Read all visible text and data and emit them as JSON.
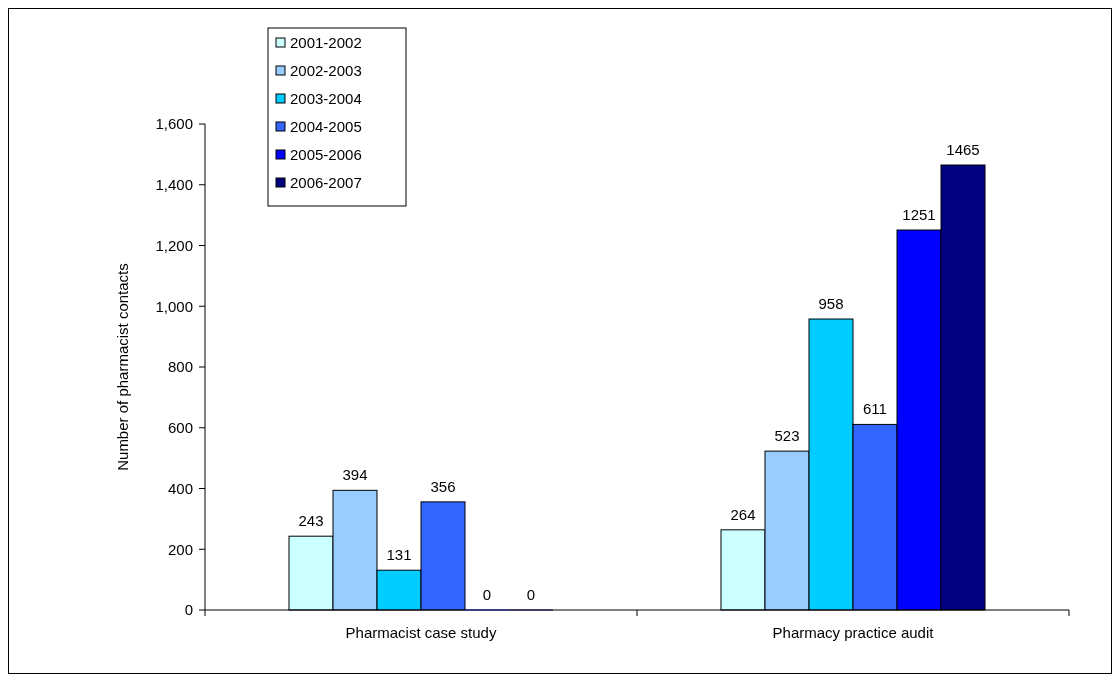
{
  "chart_data": {
    "type": "bar",
    "ylabel": "Number of pharmacist contacts",
    "categories": [
      "Pharmacist case study",
      "Pharmacy practice audit"
    ],
    "series": [
      {
        "name": "2001-2002",
        "color": "#ccffff",
        "values": [
          243,
          264
        ]
      },
      {
        "name": "2002-2003",
        "color": "#99ccff",
        "values": [
          394,
          523
        ]
      },
      {
        "name": "2003-2004",
        "color": "#00ccff",
        "values": [
          131,
          958
        ]
      },
      {
        "name": "2004-2005",
        "color": "#3366ff",
        "values": [
          356,
          611
        ]
      },
      {
        "name": "2005-2006",
        "color": "#0000ff",
        "values": [
          0,
          1251
        ]
      },
      {
        "name": "2006-2007",
        "color": "#000080",
        "values": [
          0,
          1465
        ]
      }
    ],
    "ylim": [
      0,
      1600
    ],
    "yticks": [
      0,
      200,
      400,
      600,
      800,
      {
        "value": 1000,
        "label": "1,000"
      },
      {
        "value": 1200,
        "label": "1,200"
      },
      {
        "value": 1400,
        "label": "1,400"
      },
      {
        "value": 1600,
        "label": "1,600"
      }
    ],
    "data_labels": true,
    "legend": "top left",
    "grid": false
  }
}
